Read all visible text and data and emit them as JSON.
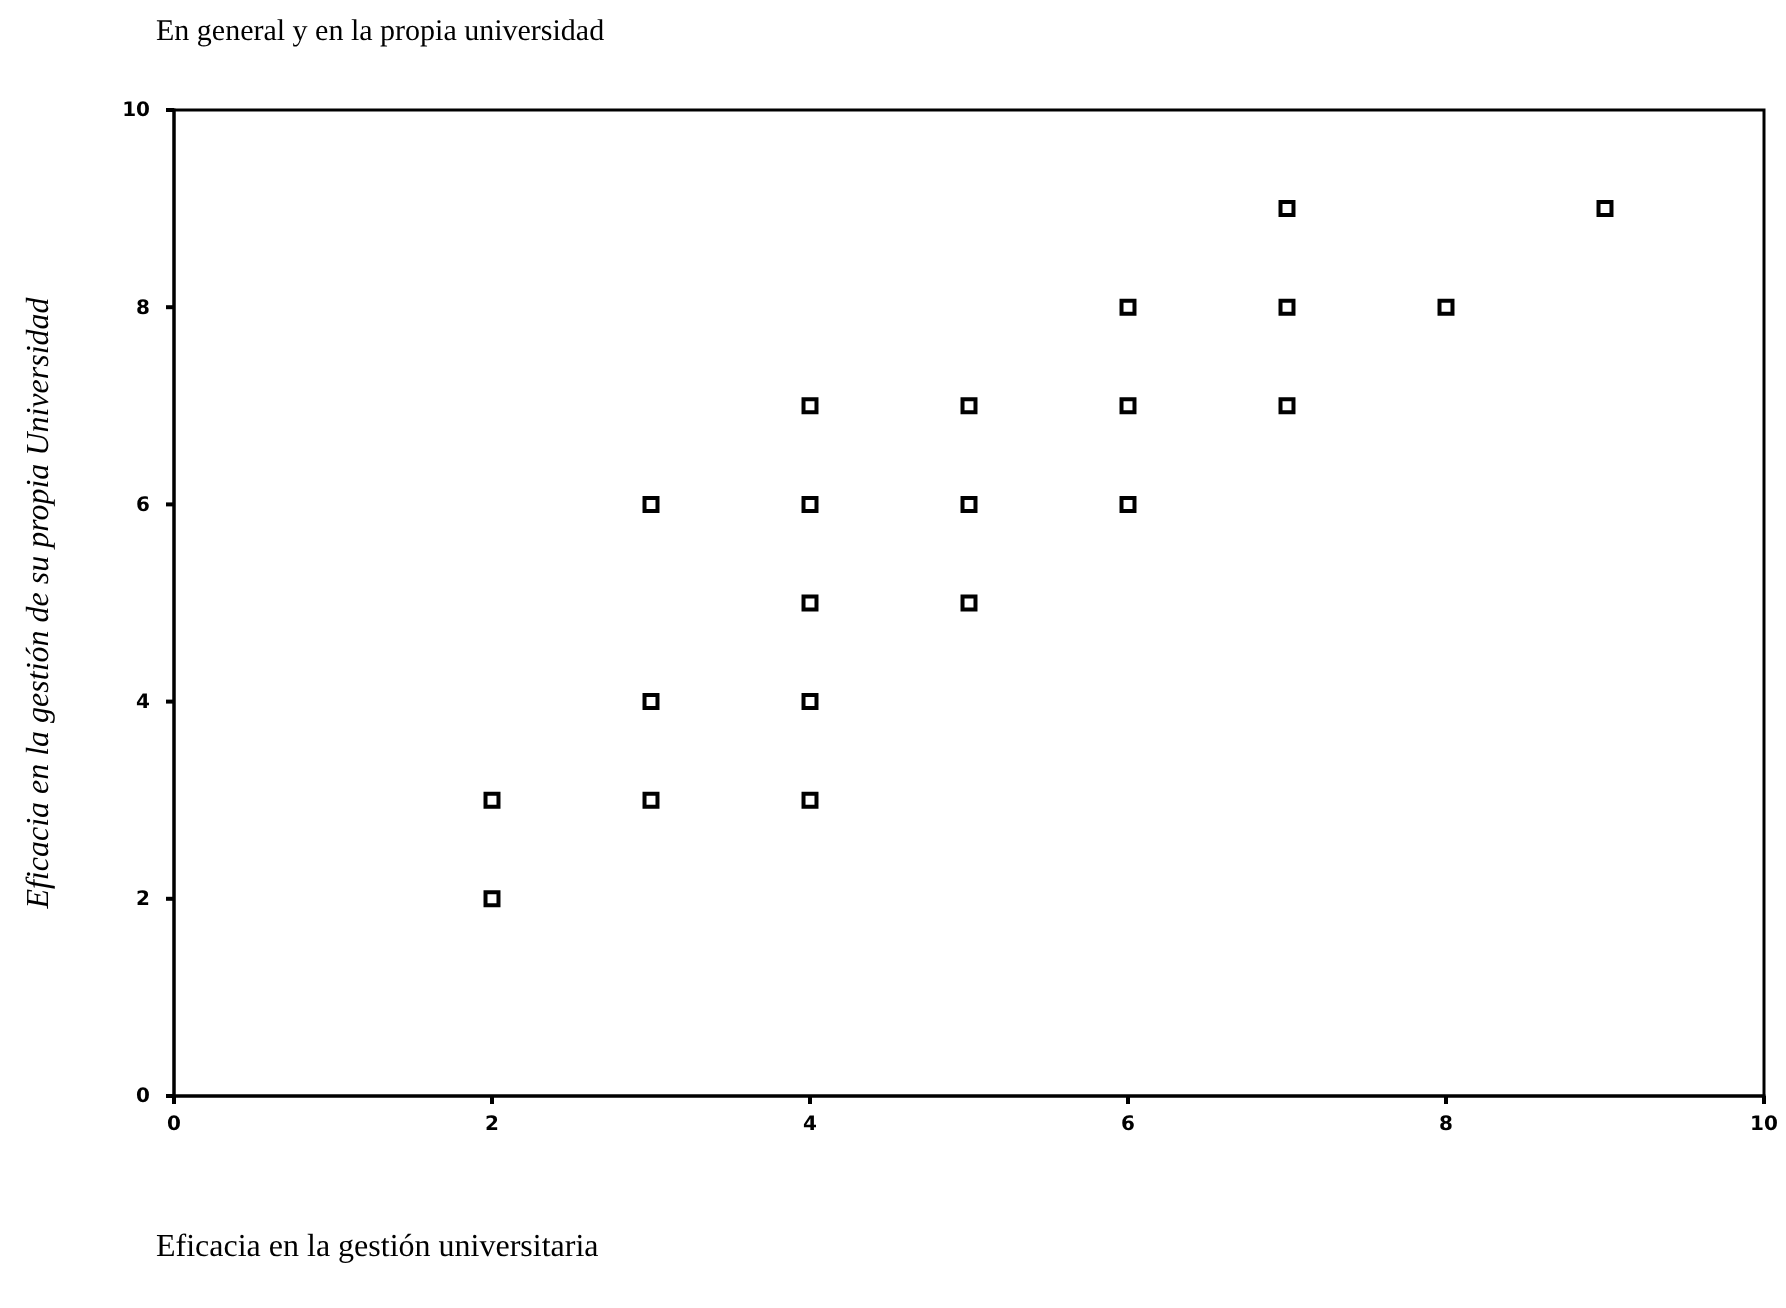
{
  "chart_data": {
    "type": "scatter",
    "title": "En general y en la propia universidad",
    "xlabel": "Eficacia en la gestión universitaria",
    "ylabel": "Eficacia en la gestión de su propia Universidad",
    "x": [
      2,
      2,
      3,
      3,
      3,
      4,
      4,
      4,
      4,
      4,
      5,
      5,
      5,
      6,
      6,
      6,
      7,
      7,
      7,
      8,
      9
    ],
    "values": [
      2,
      3,
      3,
      4,
      6,
      3,
      4,
      5,
      6,
      7,
      5,
      6,
      7,
      6,
      7,
      8,
      7,
      8,
      9,
      8,
      9
    ],
    "color": "#000000",
    "marker": "square",
    "xlim": [
      0,
      10
    ],
    "ylim": [
      0,
      10
    ],
    "xticks": [
      0,
      2,
      4,
      6,
      8,
      10
    ],
    "yticks": [
      0,
      2,
      4,
      6,
      8,
      10
    ]
  }
}
